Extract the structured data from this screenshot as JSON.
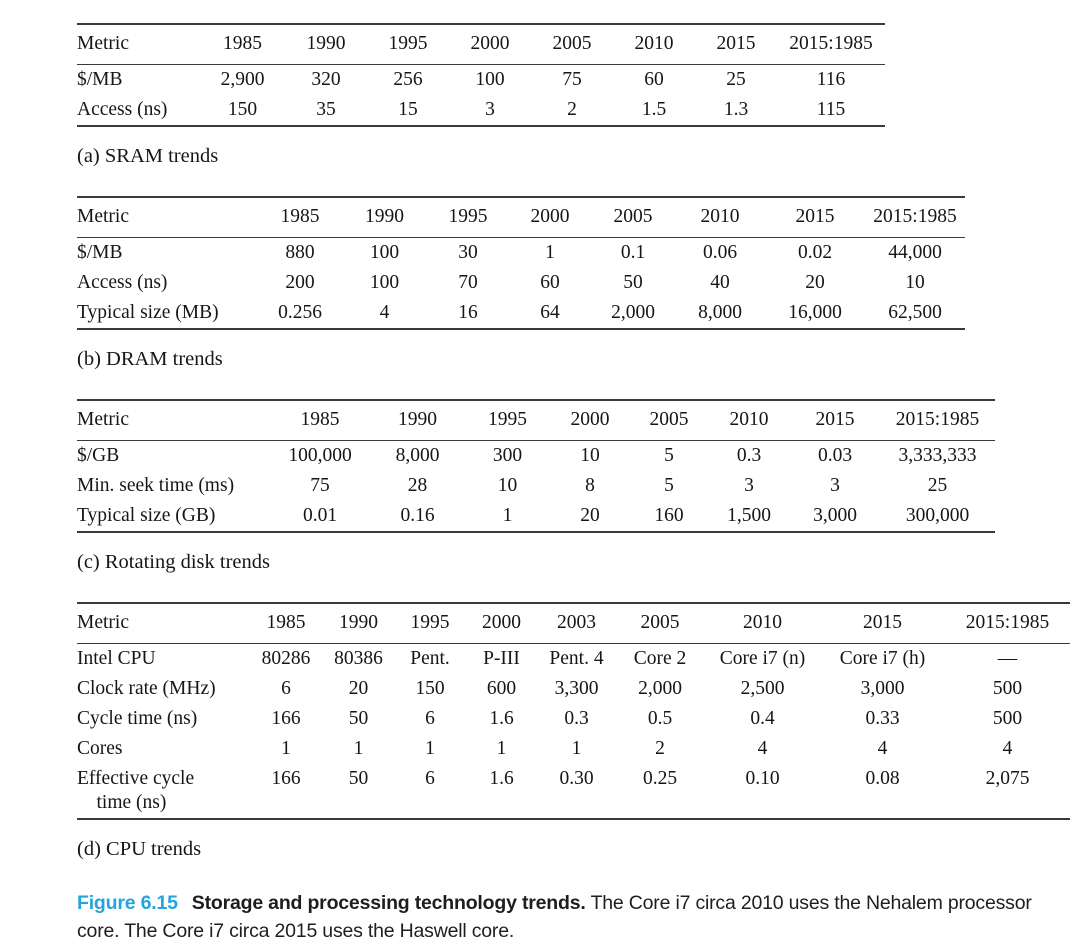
{
  "figure": {
    "label": "Figure 6.15",
    "label_color": "#25a3dc",
    "title_bold": "Storage and processing technology trends.",
    "description": "The Core i7 circa 2010 uses the Nehalem processor core. The Core i7 circa 2015 uses the Haswell core."
  },
  "colors": {
    "rule": "#3a3a3a",
    "text": "#161616",
    "figure_label_blue": "#25a3dc"
  },
  "tables": [
    {
      "id": "sram-trends",
      "caption": "(a) SRAM trends",
      "columns": [
        "Metric",
        "1985",
        "1990",
        "1995",
        "2000",
        "2005",
        "2010",
        "2015",
        "2015:1985"
      ],
      "rows": [
        [
          "$/MB",
          "2,900",
          "320",
          "256",
          "100",
          "75",
          "60",
          "25",
          "116"
        ],
        [
          "Access (ns)",
          "150",
          "35",
          "15",
          "3",
          "2",
          "1.5",
          "1.3",
          "115"
        ]
      ]
    },
    {
      "id": "dram-trends",
      "caption": "(b) DRAM trends",
      "columns": [
        "Metric",
        "1985",
        "1990",
        "1995",
        "2000",
        "2005",
        "2010",
        "2015",
        "2015:1985"
      ],
      "rows": [
        [
          "$/MB",
          "880",
          "100",
          "30",
          "1",
          "0.1",
          "0.06",
          "0.02",
          "44,000"
        ],
        [
          "Access (ns)",
          "200",
          "100",
          "70",
          "60",
          "50",
          "40",
          "20",
          "10"
        ],
        [
          "Typical size (MB)",
          "0.256",
          "4",
          "16",
          "64",
          "2,000",
          "8,000",
          "16,000",
          "62,500"
        ]
      ]
    },
    {
      "id": "rotating-disk-trends",
      "caption": "(c) Rotating disk trends",
      "columns": [
        "Metric",
        "1985",
        "1990",
        "1995",
        "2000",
        "2005",
        "2010",
        "2015",
        "2015:1985"
      ],
      "rows": [
        [
          "$/GB",
          "100,000",
          "8,000",
          "300",
          "10",
          "5",
          "0.3",
          "0.03",
          "3,333,333"
        ],
        [
          "Min. seek time (ms)",
          "75",
          "28",
          "10",
          "8",
          "5",
          "3",
          "3",
          "25"
        ],
        [
          "Typical size (GB)",
          "0.01",
          "0.16",
          "1",
          "20",
          "160",
          "1,500",
          "3,000",
          "300,000"
        ]
      ]
    },
    {
      "id": "cpu-trends",
      "caption": "(d) CPU trends",
      "columns": [
        "Metric",
        "1985",
        "1990",
        "1995",
        "2000",
        "2003",
        "2005",
        "2010",
        "2015",
        "2015:1985"
      ],
      "rows": [
        [
          "Intel CPU",
          "80286",
          "80386",
          "Pent.",
          "P-III",
          "Pent. 4",
          "Core 2",
          "Core i7 (n)",
          "Core i7 (h)",
          "—"
        ],
        [
          "Clock rate (MHz)",
          "6",
          "20",
          "150",
          "600",
          "3,300",
          "2,000",
          "2,500",
          "3,000",
          "500"
        ],
        [
          "Cycle time (ns)",
          "166",
          "50",
          "6",
          "1.6",
          "0.3",
          "0.5",
          "0.4",
          "0.33",
          "500"
        ],
        [
          "Cores",
          "1",
          "1",
          "1",
          "1",
          "1",
          "2",
          "4",
          "4",
          "4"
        ],
        [
          "Effective cycle\n    time (ns)",
          "166",
          "50",
          "6",
          "1.6",
          "0.30",
          "0.25",
          "0.10",
          "0.08",
          "2,075"
        ]
      ]
    }
  ]
}
